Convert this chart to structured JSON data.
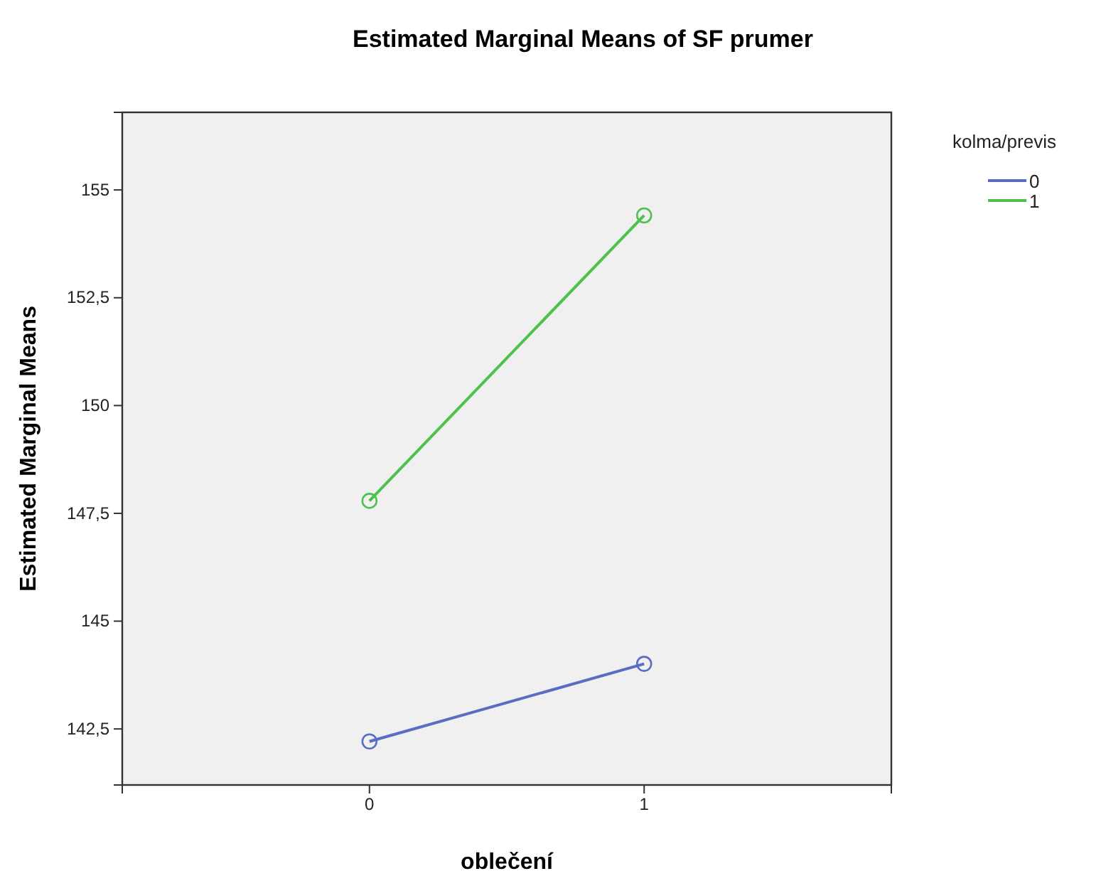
{
  "chart_data": {
    "type": "line",
    "title": "Estimated Marginal Means of SF prumer",
    "xlabel": "oblečení",
    "ylabel": "Estimated Marginal Means",
    "legend_title": "kolma/previs",
    "categories": [
      "0",
      "1"
    ],
    "series": [
      {
        "name": "0",
        "color": "#5b6cc4",
        "values": [
          142.21,
          144.01
        ]
      },
      {
        "name": "1",
        "color": "#4cc24c",
        "values": [
          147.79,
          154.41
        ]
      }
    ],
    "ylim": [
      141.2,
      156.8
    ],
    "yticks": [
      {
        "value": 142.5,
        "label": "142,5"
      },
      {
        "value": 145,
        "label": "145"
      },
      {
        "value": 147.5,
        "label": "147,5"
      },
      {
        "value": 150,
        "label": "150"
      },
      {
        "value": 152.5,
        "label": "152,5"
      },
      {
        "value": 155,
        "label": "155"
      }
    ],
    "grid": false,
    "legend": "right",
    "marker": "circle",
    "line_style": "solid"
  }
}
